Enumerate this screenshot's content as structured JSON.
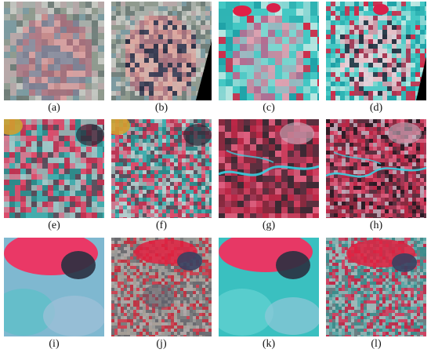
{
  "panels": [
    {
      "label": "(a)",
      "theme": "a"
    },
    {
      "label": "(b)",
      "theme": "b"
    },
    {
      "label": "(c)",
      "theme": "c"
    },
    {
      "label": "(d)",
      "theme": "d"
    },
    {
      "label": "(e)",
      "theme": "e"
    },
    {
      "label": "(f)",
      "theme": "f"
    },
    {
      "label": "(g)",
      "theme": "g"
    },
    {
      "label": "(h)",
      "theme": "h"
    },
    {
      "label": "(i)",
      "theme": "i"
    },
    {
      "label": "(j)",
      "theme": "j"
    },
    {
      "label": "(k)",
      "theme": "k"
    },
    {
      "label": "(l)",
      "theme": "l"
    }
  ]
}
